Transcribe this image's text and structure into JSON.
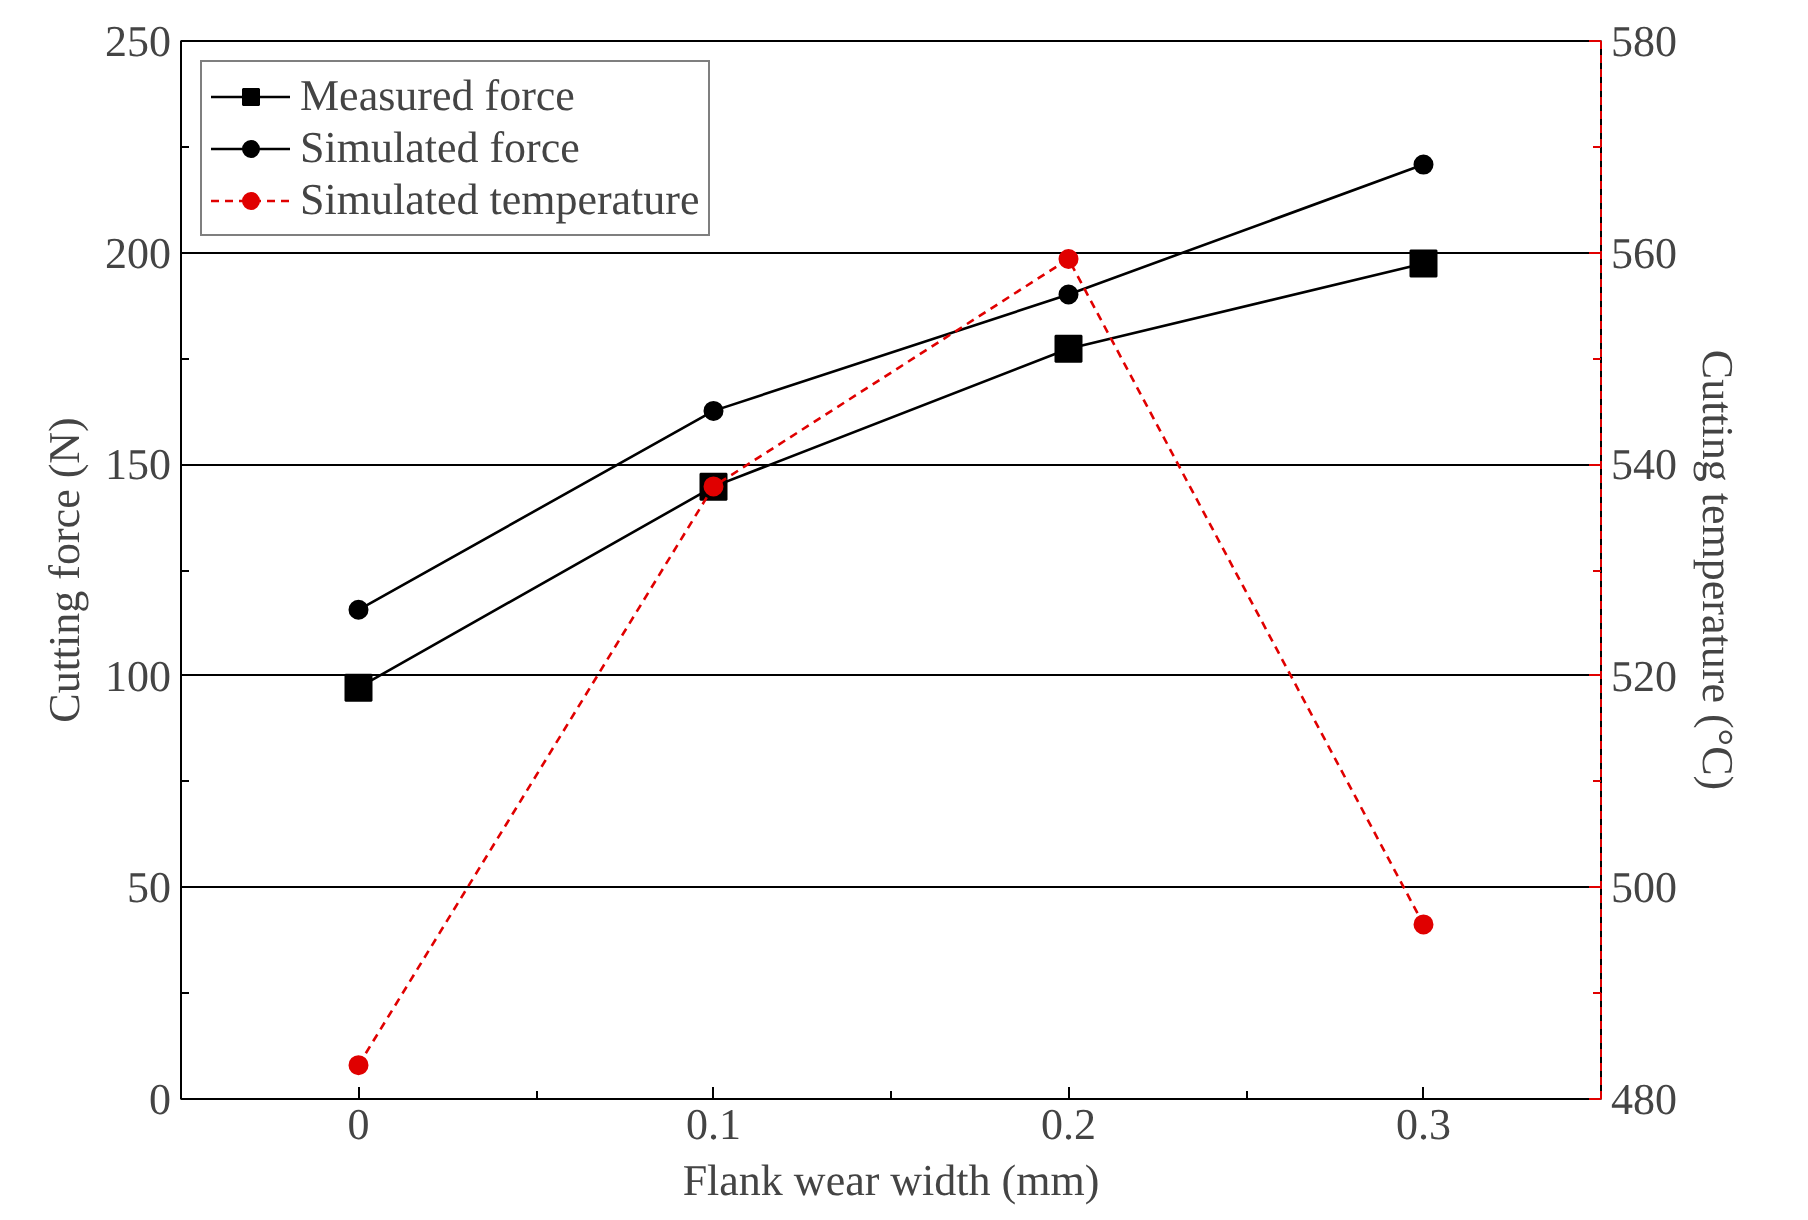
{
  "chart_data": {
    "type": "line",
    "xlabel": "Flank wear width (mm)",
    "ylabel": "Cutting force (N)",
    "y2label": "Cutting temperature (°C)",
    "x": [
      0,
      0.1,
      0.2,
      0.3
    ],
    "xlim": [
      -0.05,
      0.35
    ],
    "xticks": [
      0,
      0.1,
      0.2,
      0.3
    ],
    "ylim": [
      0,
      250
    ],
    "yticks": [
      0,
      50,
      100,
      150,
      200,
      250
    ],
    "y2lim": [
      480,
      580
    ],
    "y2ticks": [
      480,
      500,
      520,
      540,
      560,
      580
    ],
    "grid": "y",
    "legend": "top left",
    "series": [
      {
        "name": "Measured force",
        "color": "#000000",
        "values": [
          97.2,
          144.7,
          177.3,
          197.4
        ],
        "marker": "square",
        "line_style": "solid"
      },
      {
        "name": "Simulated force",
        "color": "#000000",
        "values": [
          115.6,
          162.6,
          190.1,
          220.8
        ],
        "marker": "circle",
        "line_style": "solid"
      },
      {
        "name": "Simulated temperature",
        "color": "#e00000",
        "values": [
          483.2,
          537.9,
          559.4,
          496.5
        ],
        "marker": "circle",
        "line_style": "dashed",
        "axis": "y2"
      }
    ]
  }
}
